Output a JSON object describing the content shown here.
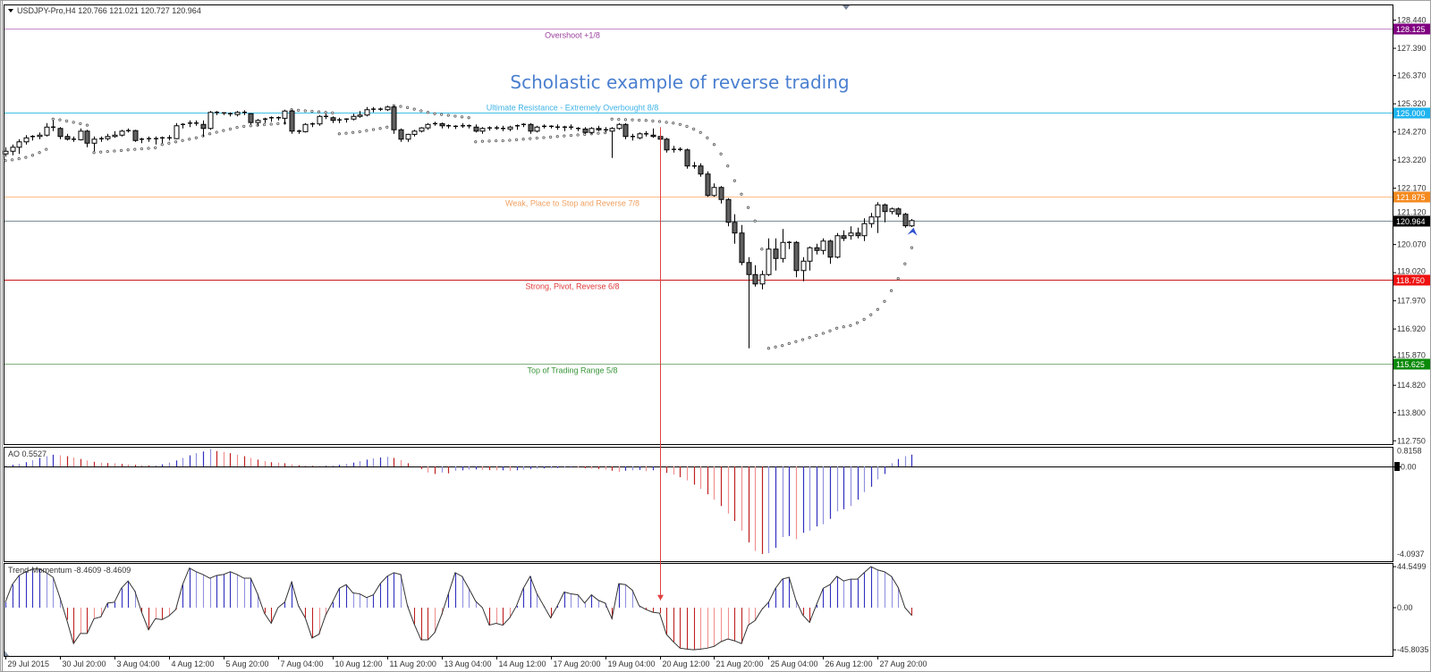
{
  "window": {
    "symbol_header": "USDJPY-Pro,H4  120.766 121.021 120.727 120.964",
    "annotation_title": "Scholastic example of reverse trading"
  },
  "colors": {
    "bull_fill": "#ffffff",
    "bear_fill": "#606060",
    "candle_outline": "#000000",
    "sar_dot": "#555555",
    "hist_up": "#3030c0",
    "hist_up_light": "#9090e0",
    "hist_down": "#c02020",
    "hist_down_light": "#f09090",
    "title": "#4a7fd0",
    "annotation_line": "#e04040",
    "signal_arrow": "#3050d0"
  },
  "chart_data": {
    "type": "candlestick",
    "symbol": "USDJPY-Pro",
    "timeframe": "H4",
    "last_ohlc": {
      "open": 120.766,
      "high": 121.021,
      "low": 120.727,
      "close": 120.964
    },
    "ylim": [
      112.62,
      128.93
    ],
    "price_axis": {
      "ticks": [
        "128.440",
        "127.390",
        "126.370",
        "125.320",
        "124.270",
        "123.220",
        "122.170",
        "121.120",
        "120.070",
        "119.020",
        "117.970",
        "116.920",
        "115.870",
        "114.820",
        "113.800",
        "112.750"
      ]
    },
    "time_axis": {
      "labels": [
        "29 Jul 2015",
        "30 Jul 20:00",
        "3 Aug 04:00",
        "4 Aug 12:00",
        "5 Aug 20:00",
        "7 Aug 04:00",
        "10 Aug 12:00",
        "11 Aug 20:00",
        "13 Aug 04:00",
        "14 Aug 12:00",
        "17 Aug 20:00",
        "19 Aug 04:00",
        "20 Aug 12:00",
        "21 Aug 20:00",
        "25 Aug 04:00",
        "26 Aug 12:00",
        "27 Aug 20:00"
      ]
    },
    "levels": [
      {
        "price": 128.125,
        "price_label": "128.125",
        "text": "Overshoot  +1/8",
        "line_color": "#c58bc5",
        "text_color": "#9b3f9b",
        "badge_color": "#800080",
        "text_pos": "below"
      },
      {
        "price": 125.0,
        "price_label": "125.000",
        "text": "Ultimate Resistance - Extremely Overbought  8/8",
        "line_color": "#3cbfe6",
        "text_color": "#3fb3e6",
        "badge_color": "#1eb4f0",
        "text_pos": "above"
      },
      {
        "price": 121.875,
        "price_label": "121.875",
        "text": "Weak, Place to Stop and Reverse  7/8",
        "line_color": "#ffb985",
        "text_color": "#f0a060",
        "badge_color": "#f58a1f",
        "text_pos": "below"
      },
      {
        "price": 118.75,
        "price_label": "118.750",
        "text": "Strong, Pivot, Reverse  6/8",
        "line_color": "#c81818",
        "text_color": "#e03a3a",
        "badge_color": "#ee1111",
        "text_pos": "below"
      },
      {
        "price": 115.625,
        "price_label": "115.625",
        "text": "Top of Trading Range  5/8",
        "line_color": "#7fb07f",
        "text_color": "#3a963a",
        "badge_color": "#0a8a0a",
        "text_pos": "below"
      }
    ],
    "current_price": {
      "price": 120.964,
      "label": "120.964",
      "line_color": "#7a8a90",
      "badge_color": "#000000"
    },
    "candles": [
      [
        123.45,
        123.7,
        123.35,
        123.55
      ],
      [
        123.55,
        123.8,
        123.4,
        123.7
      ],
      [
        123.7,
        124.0,
        123.45,
        123.9
      ],
      [
        123.9,
        124.15,
        123.8,
        124.05
      ],
      [
        124.05,
        124.15,
        123.95,
        124.1
      ],
      [
        124.1,
        124.25,
        124.0,
        124.15
      ],
      [
        124.15,
        124.6,
        124.1,
        124.45
      ],
      [
        124.45,
        124.7,
        124.3,
        124.4
      ],
      [
        124.4,
        124.45,
        124.0,
        124.1
      ],
      [
        124.1,
        124.2,
        123.95,
        124.0
      ],
      [
        124.0,
        124.1,
        123.9,
        123.98
      ],
      [
        123.98,
        124.4,
        123.95,
        124.3
      ],
      [
        124.3,
        124.35,
        123.7,
        123.85
      ],
      [
        123.85,
        124.1,
        123.55,
        124.0
      ],
      [
        124.0,
        124.1,
        123.9,
        124.02
      ],
      [
        124.02,
        124.2,
        123.95,
        124.1
      ],
      [
        124.1,
        124.3,
        124.05,
        124.15
      ],
      [
        124.15,
        124.35,
        124.1,
        124.3
      ],
      [
        124.3,
        124.4,
        124.25,
        124.32
      ],
      [
        124.32,
        124.35,
        123.9,
        123.95
      ],
      [
        123.95,
        124.05,
        123.85,
        124.0
      ],
      [
        124.0,
        124.1,
        123.9,
        124.02
      ],
      [
        124.02,
        124.1,
        123.8,
        124.0
      ],
      [
        124.0,
        124.1,
        123.85,
        124.05
      ],
      [
        124.05,
        124.15,
        123.95,
        124.02
      ],
      [
        124.02,
        124.6,
        124.0,
        124.5
      ],
      [
        124.5,
        124.6,
        124.4,
        124.55
      ],
      [
        124.55,
        124.7,
        124.45,
        124.6
      ],
      [
        124.6,
        124.7,
        124.5,
        124.55
      ],
      [
        124.55,
        124.7,
        124.1,
        124.4
      ],
      [
        124.4,
        125.05,
        124.35,
        125.0
      ],
      [
        125.0,
        125.05,
        124.9,
        124.98
      ],
      [
        124.98,
        125.0,
        124.9,
        124.95
      ],
      [
        124.95,
        125.0,
        124.85,
        124.92
      ],
      [
        124.92,
        125.05,
        124.85,
        125.0
      ],
      [
        125.0,
        125.08,
        124.9,
        124.95
      ],
      [
        124.95,
        124.97,
        124.55,
        124.62
      ],
      [
        124.62,
        124.75,
        124.5,
        124.7
      ],
      [
        124.7,
        124.8,
        124.6,
        124.75
      ],
      [
        124.75,
        124.85,
        124.65,
        124.8
      ],
      [
        124.8,
        124.85,
        124.7,
        124.78
      ],
      [
        124.78,
        125.1,
        124.55,
        125.05
      ],
      [
        125.05,
        125.1,
        124.2,
        124.3
      ],
      [
        124.3,
        124.35,
        124.2,
        124.28
      ],
      [
        124.28,
        124.6,
        124.25,
        124.55
      ],
      [
        124.55,
        124.62,
        124.45,
        124.57
      ],
      [
        124.57,
        124.9,
        124.5,
        124.85
      ],
      [
        124.85,
        124.95,
        124.75,
        124.8
      ],
      [
        124.8,
        124.85,
        124.6,
        124.7
      ],
      [
        124.7,
        124.8,
        124.6,
        124.72
      ],
      [
        124.72,
        124.78,
        124.62,
        124.75
      ],
      [
        124.75,
        124.95,
        124.7,
        124.85
      ],
      [
        124.85,
        125.05,
        124.8,
        124.9
      ],
      [
        124.9,
        125.2,
        124.85,
        125.1
      ],
      [
        125.1,
        125.2,
        125.0,
        125.12
      ],
      [
        125.12,
        125.18,
        125.05,
        125.1
      ],
      [
        125.1,
        125.25,
        125.05,
        125.2
      ],
      [
        125.2,
        125.25,
        124.2,
        124.35
      ],
      [
        124.35,
        124.4,
        123.9,
        124.0
      ],
      [
        124.0,
        124.2,
        123.9,
        124.18
      ],
      [
        124.18,
        124.35,
        124.1,
        124.3
      ],
      [
        124.3,
        124.45,
        124.25,
        124.42
      ],
      [
        124.42,
        124.6,
        124.35,
        124.55
      ],
      [
        124.55,
        124.65,
        124.5,
        124.58
      ],
      [
        124.58,
        124.62,
        124.4,
        124.5
      ],
      [
        124.5,
        124.55,
        124.4,
        124.45
      ],
      [
        124.45,
        124.52,
        124.38,
        124.48
      ],
      [
        124.48,
        124.6,
        124.42,
        124.5
      ],
      [
        124.5,
        124.55,
        124.4,
        124.45
      ],
      [
        124.45,
        124.55,
        124.25,
        124.3
      ],
      [
        124.3,
        124.45,
        124.2,
        124.4
      ],
      [
        124.4,
        124.48,
        124.32,
        124.42
      ],
      [
        124.42,
        124.5,
        124.35,
        124.4
      ],
      [
        124.4,
        124.5,
        124.3,
        124.38
      ],
      [
        124.38,
        124.5,
        124.3,
        124.45
      ],
      [
        124.45,
        124.55,
        124.35,
        124.5
      ],
      [
        124.5,
        124.6,
        124.45,
        124.55
      ],
      [
        124.55,
        124.6,
        124.2,
        124.3
      ],
      [
        124.3,
        124.5,
        124.25,
        124.45
      ],
      [
        124.45,
        124.55,
        124.4,
        124.48
      ],
      [
        124.48,
        124.52,
        124.4,
        124.45
      ],
      [
        124.45,
        124.55,
        124.35,
        124.4
      ],
      [
        124.4,
        124.5,
        124.3,
        124.45
      ],
      [
        124.45,
        124.55,
        124.35,
        124.4
      ],
      [
        124.4,
        124.45,
        124.3,
        124.38
      ],
      [
        124.38,
        124.45,
        124.2,
        124.25
      ],
      [
        124.25,
        124.45,
        124.2,
        124.4
      ],
      [
        124.4,
        124.5,
        124.3,
        124.35
      ],
      [
        124.35,
        124.45,
        124.25,
        124.3
      ],
      [
        124.3,
        124.45,
        123.3,
        124.4
      ],
      [
        124.4,
        124.6,
        124.35,
        124.55
      ],
      [
        124.55,
        124.6,
        124.0,
        124.1
      ],
      [
        124.1,
        124.2,
        123.95,
        124.05
      ],
      [
        124.05,
        124.25,
        124.0,
        124.2
      ],
      [
        124.2,
        124.3,
        124.1,
        124.15
      ],
      [
        124.15,
        124.4,
        124.05,
        124.1
      ],
      [
        124.1,
        124.25,
        123.9,
        124.0
      ],
      [
        124.0,
        124.05,
        123.5,
        123.6
      ],
      [
        123.6,
        123.75,
        123.5,
        123.62
      ],
      [
        123.62,
        123.7,
        123.55,
        123.6
      ],
      [
        123.6,
        123.65,
        122.9,
        123.0
      ],
      [
        123.0,
        123.15,
        122.9,
        123.0
      ],
      [
        123.0,
        123.1,
        122.6,
        122.7
      ],
      [
        122.7,
        122.8,
        121.85,
        121.9
      ],
      [
        121.9,
        122.35,
        121.85,
        122.2
      ],
      [
        122.2,
        122.25,
        121.6,
        121.75
      ],
      [
        121.75,
        121.8,
        120.75,
        120.9
      ],
      [
        120.9,
        121.2,
        120.1,
        120.5
      ],
      [
        120.5,
        120.8,
        119.3,
        119.4
      ],
      [
        119.4,
        119.6,
        116.2,
        118.95
      ],
      [
        118.95,
        119.3,
        118.5,
        118.6
      ],
      [
        118.6,
        119.1,
        118.4,
        118.95
      ],
      [
        118.95,
        120.3,
        118.9,
        119.9
      ],
      [
        119.9,
        120.3,
        119.1,
        119.55
      ],
      [
        119.55,
        120.65,
        119.4,
        120.15
      ],
      [
        120.15,
        120.2,
        119.9,
        120.15
      ],
      [
        120.15,
        120.2,
        118.85,
        119.1
      ],
      [
        119.1,
        119.6,
        118.7,
        119.45
      ],
      [
        119.45,
        120.0,
        119.1,
        119.95
      ],
      [
        119.95,
        120.1,
        119.7,
        119.85
      ],
      [
        119.85,
        120.3,
        119.7,
        120.2
      ],
      [
        120.2,
        120.25,
        119.35,
        119.6
      ],
      [
        119.6,
        120.5,
        119.55,
        120.4
      ],
      [
        120.4,
        120.6,
        120.2,
        120.3
      ],
      [
        120.4,
        120.75,
        120.25,
        120.5
      ],
      [
        120.5,
        120.7,
        120.3,
        120.4
      ],
      [
        120.4,
        121.05,
        120.2,
        120.85
      ],
      [
        120.85,
        121.25,
        120.7,
        121.1
      ],
      [
        121.1,
        121.65,
        120.5,
        121.55
      ],
      [
        121.55,
        121.6,
        120.9,
        121.3
      ],
      [
        121.3,
        121.45,
        121.2,
        121.4
      ],
      [
        121.4,
        121.45,
        121.1,
        121.2
      ],
      [
        121.2,
        121.25,
        120.7,
        120.77
      ],
      [
        120.766,
        121.021,
        120.727,
        120.964
      ]
    ],
    "parabolic_sar": [
      123.2,
      123.23,
      123.27,
      123.32,
      123.4,
      123.5,
      123.62,
      124.75,
      124.72,
      124.68,
      124.63,
      124.58,
      124.52,
      123.5,
      123.52,
      123.54,
      123.56,
      123.58,
      123.6,
      123.62,
      123.64,
      123.66,
      123.68,
      123.8,
      123.85,
      123.9,
      123.95,
      124.0,
      124.05,
      124.12,
      124.2,
      124.26,
      124.32,
      124.38,
      124.44,
      124.48,
      124.5,
      124.52,
      124.54,
      124.56,
      124.58,
      124.6,
      125.1,
      125.08,
      125.06,
      125.04,
      125.02,
      125.0,
      124.98,
      124.2,
      124.22,
      124.25,
      124.28,
      124.32,
      124.36,
      124.4,
      124.45,
      125.25,
      125.22,
      125.18,
      125.12,
      125.06,
      125.0,
      124.95,
      124.92,
      124.89,
      124.86,
      124.83,
      124.8,
      123.9,
      123.92,
      123.93,
      123.94,
      123.94,
      123.96,
      123.98,
      124.0,
      124.02,
      124.04,
      124.06,
      124.08,
      124.1,
      124.12,
      124.14,
      124.16,
      124.18,
      124.2,
      124.22,
      124.24,
      124.75,
      124.74,
      124.73,
      124.72,
      124.71,
      124.7,
      124.68,
      124.66,
      124.63,
      124.6,
      124.55,
      124.48,
      124.38,
      124.25,
      124.05,
      123.8,
      123.45,
      123.0,
      122.45,
      121.95,
      121.45,
      120.95,
      119.9,
      116.2,
      116.25,
      116.3,
      116.38,
      116.45,
      116.52,
      116.6,
      116.68,
      116.76,
      116.85,
      116.95,
      117.0,
      117.05,
      117.15,
      117.28,
      117.45,
      117.65,
      117.95,
      118.35,
      118.8,
      119.35,
      119.95
    ],
    "annotation_arrow": {
      "bar": 96,
      "from_price": 124.45,
      "to_trend_momentum": 8
    },
    "signal_arrow": {
      "bar": 133,
      "price": 120.7,
      "icon": "arrow-pointer-icon"
    },
    "ao": {
      "label": "AO 0.5527",
      "ylim": [
        -4.0937,
        0.8158
      ],
      "axis_labels": [
        "0.8158",
        "0.00",
        "-4.0937"
      ],
      "values": [
        0.05,
        0.08,
        0.12,
        0.2,
        0.3,
        0.4,
        0.48,
        0.55,
        0.52,
        0.48,
        0.42,
        0.35,
        0.28,
        0.22,
        0.18,
        0.16,
        0.15,
        0.12,
        0.1,
        0.08,
        0.06,
        0.05,
        0.05,
        0.1,
        0.18,
        0.28,
        0.4,
        0.52,
        0.62,
        0.7,
        0.8158,
        0.72,
        0.68,
        0.62,
        0.55,
        0.48,
        0.4,
        0.32,
        0.25,
        0.2,
        0.18,
        0.15,
        0.1,
        0.06,
        0.04,
        0.03,
        0.02,
        0.03,
        0.05,
        0.08,
        0.12,
        0.18,
        0.25,
        0.32,
        0.38,
        0.42,
        0.45,
        0.4,
        0.3,
        0.15,
        0.0,
        -0.12,
        -0.28,
        -0.35,
        -0.28,
        -0.32,
        -0.2,
        -0.18,
        -0.15,
        -0.14,
        -0.16,
        -0.17,
        -0.18,
        -0.18,
        -0.2,
        -0.18,
        -0.15,
        -0.12,
        -0.1,
        -0.09,
        -0.08,
        -0.07,
        -0.06,
        -0.05,
        -0.06,
        -0.08,
        -0.1,
        -0.12,
        -0.15,
        -0.2,
        -0.25,
        -0.2,
        -0.18,
        -0.16,
        -0.22,
        -0.18,
        -0.25,
        -0.3,
        -0.38,
        -0.5,
        -0.65,
        -0.85,
        -1.05,
        -1.3,
        -1.55,
        -1.85,
        -2.2,
        -2.55,
        -3.0,
        -3.55,
        -3.95,
        -4.09,
        -4.05,
        -3.8,
        -3.3,
        -3.25,
        -3.4,
        -3.1,
        -3.0,
        -2.8,
        -2.7,
        -2.45,
        -2.1,
        -2.0,
        -1.85,
        -1.55,
        -1.2,
        -0.95,
        -0.6,
        -0.35,
        0.15,
        0.35,
        0.48,
        0.5527
      ]
    },
    "trend_momentum": {
      "label": "Trend-Momentum -8.4609 -8.4609",
      "ylim": [
        -45.8035,
        44.5499
      ],
      "axis_labels": [
        "44.5499",
        "0.00",
        "-45.8035"
      ],
      "values": [
        6,
        25,
        35,
        39,
        42,
        42,
        38,
        33,
        11,
        -13,
        -39,
        -28,
        -28,
        -12,
        -10,
        5,
        6,
        21,
        29,
        18,
        -5,
        -24,
        -12,
        -13,
        -9,
        -2,
        25,
        43,
        39,
        36,
        32,
        35,
        36,
        39,
        36,
        32,
        32,
        15,
        -6,
        -17,
        0,
        6,
        28,
        2,
        -11,
        -33,
        -29,
        -8,
        6,
        21,
        25,
        16,
        15,
        11,
        14,
        26,
        34,
        38,
        36,
        2,
        -18,
        -35,
        -35,
        -27,
        -8,
        15,
        38,
        34,
        21,
        7,
        0,
        -19,
        -17,
        -19,
        -11,
        2,
        21,
        34,
        15,
        2,
        -11,
        2,
        17,
        15,
        14,
        5,
        14,
        8,
        5,
        -12,
        26,
        25,
        19,
        2,
        -2,
        -5,
        -6,
        -29,
        -37,
        -44,
        -45,
        -45.8035,
        -45,
        -44,
        -42,
        -37,
        -34,
        -36,
        -39,
        -19,
        -14,
        -2,
        6,
        21,
        31,
        33,
        8,
        -8,
        -16,
        3,
        21,
        25,
        34,
        29,
        31,
        31,
        38,
        44.5499,
        41,
        39,
        34,
        22,
        0,
        -8.4609
      ]
    }
  }
}
